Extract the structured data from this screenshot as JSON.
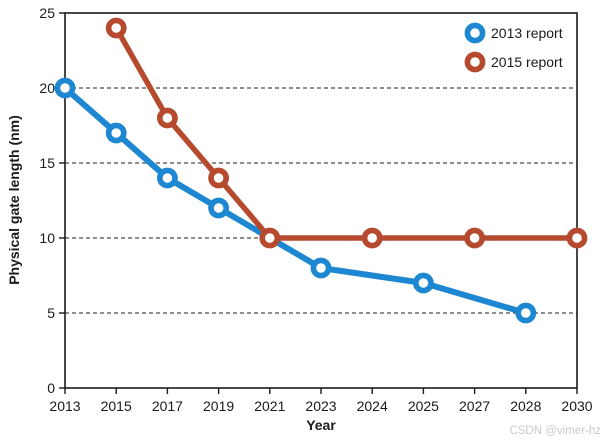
{
  "chart_data": {
    "type": "line",
    "title": "",
    "xlabel": "Year",
    "ylabel": "Physical gate length (nm)",
    "categories": [
      "2013",
      "2015",
      "2017",
      "2019",
      "2021",
      "2023",
      "2024",
      "2025",
      "2027",
      "2028",
      "2030"
    ],
    "y_ticks": [
      0,
      5,
      10,
      15,
      20,
      25
    ],
    "ylim": [
      0,
      25
    ],
    "grid": {
      "horizontal_dashed_at": [
        5,
        10,
        15,
        20
      ],
      "frame": "full-box"
    },
    "legend": {
      "position": "top-right-inside"
    },
    "series": [
      {
        "name": "2013 report",
        "color": "#1d87d1",
        "points": [
          {
            "x": "2013",
            "y": 20
          },
          {
            "x": "2015",
            "y": 17
          },
          {
            "x": "2017",
            "y": 14
          },
          {
            "x": "2019",
            "y": 12
          },
          {
            "x": "2021",
            "y": 10,
            "marker": false
          },
          {
            "x": "2023",
            "y": 8
          },
          {
            "x": "2025",
            "y": 7
          },
          {
            "x": "2028",
            "y": 5
          }
        ]
      },
      {
        "name": "2015 report",
        "color": "#b64a2e",
        "points": [
          {
            "x": "2015",
            "y": 24
          },
          {
            "x": "2017",
            "y": 18
          },
          {
            "x": "2019",
            "y": 14
          },
          {
            "x": "2021",
            "y": 10
          },
          {
            "x": "2024",
            "y": 10
          },
          {
            "x": "2027",
            "y": 10
          },
          {
            "x": "2030",
            "y": 10
          }
        ]
      }
    ],
    "marker": {
      "shape": "open-circle",
      "fill": "#ffffff"
    },
    "colors": {
      "axis": "#1a1a1a",
      "grid": "#4a4a4a",
      "text": "#1a1a1a",
      "watermark": "#c9c9c9",
      "background": "#ffffff"
    }
  },
  "watermark": "CSDN @vimer-hz"
}
